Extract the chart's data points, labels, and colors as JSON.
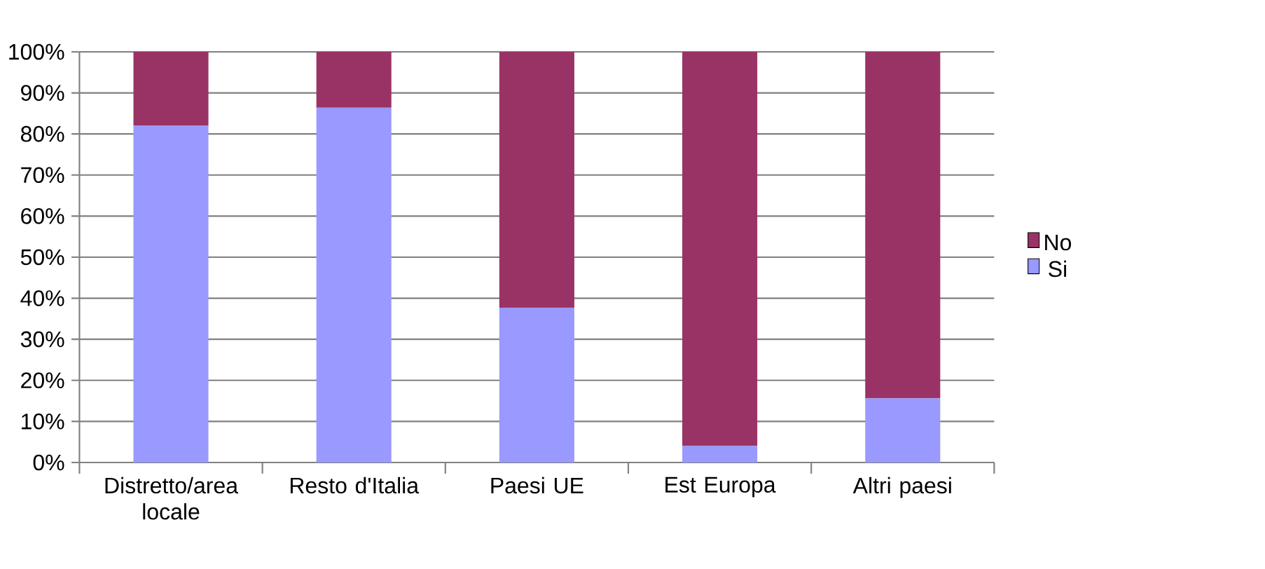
{
  "chart_data": {
    "type": "bar",
    "stacked": true,
    "categories": [
      "Distretto/area locale",
      "Resto d'Italia",
      "Paesi UE",
      "Est Europa",
      "Altri paesi"
    ],
    "series": [
      {
        "name": "Si",
        "color": "#9999ff",
        "values": [
          82,
          86.4,
          37.7,
          4,
          15.6
        ]
      },
      {
        "name": "No",
        "color": "#993366",
        "values": [
          18,
          13.6,
          62.3,
          96,
          84.4
        ]
      }
    ],
    "ylim": [
      0,
      100
    ],
    "yticks": [
      {
        "value": 0,
        "label": "0%"
      },
      {
        "value": 10,
        "label": "10%"
      },
      {
        "value": 20,
        "label": "20%"
      },
      {
        "value": 30,
        "label": "30%"
      },
      {
        "value": 40,
        "label": "40%"
      },
      {
        "value": 50,
        "label": "50%"
      },
      {
        "value": 60,
        "label": "60%"
      },
      {
        "value": 70,
        "label": "70%"
      },
      {
        "value": 80,
        "label": "80%"
      },
      {
        "value": 90,
        "label": "90%"
      },
      {
        "value": 100,
        "label": "100%"
      }
    ],
    "grid": "y",
    "legend": "right"
  }
}
